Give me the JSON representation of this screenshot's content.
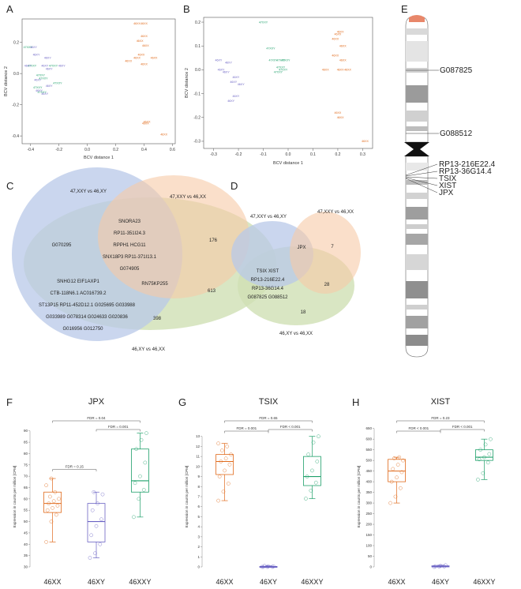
{
  "colors": {
    "xx": "#e06a1b",
    "xy": "#6b63c4",
    "xxy": "#1ea06a",
    "venn_blue": "#b8c8e8",
    "venn_orange": "#f6c9a6",
    "venn_green": "#cfe0b4"
  },
  "panel_labels": {
    "a": "A",
    "b": "B",
    "c": "C",
    "d": "D",
    "e": "E",
    "f": "F",
    "g": "G",
    "h": "H"
  },
  "mds_a": {
    "xlabel": "BCV distance 1",
    "ylabel": "BCV distance 2",
    "xticks": [
      "-0.4",
      "-0.2",
      "0.0",
      "0.2",
      "0.4",
      "0.6"
    ],
    "yticks": [
      "-0.4",
      "-0.2",
      "0.0",
      "0.2"
    ],
    "points": [
      {
        "label": "46XX",
        "group": "xx",
        "x": 0.35,
        "y": 0.32
      },
      {
        "label": "46XX",
        "group": "xx",
        "x": 0.4,
        "y": 0.32
      },
      {
        "label": "46XX",
        "group": "xx",
        "x": 0.4,
        "y": 0.24
      },
      {
        "label": "46XX",
        "group": "xx",
        "x": 0.37,
        "y": 0.21
      },
      {
        "label": "46XX",
        "group": "xx",
        "x": 0.41,
        "y": 0.18
      },
      {
        "label": "46XX",
        "group": "xx",
        "x": 0.38,
        "y": 0.12
      },
      {
        "label": "46XX",
        "group": "xx",
        "x": 0.35,
        "y": 0.1
      },
      {
        "label": "46XX",
        "group": "xx",
        "x": 0.47,
        "y": 0.1
      },
      {
        "label": "46XX",
        "group": "xx",
        "x": 0.29,
        "y": 0.08
      },
      {
        "label": "46XX",
        "group": "xx",
        "x": 0.4,
        "y": 0.06
      },
      {
        "label": "46XX",
        "group": "xx",
        "x": 0.42,
        "y": -0.31
      },
      {
        "label": "46XX",
        "group": "xx",
        "x": 0.41,
        "y": -0.32
      },
      {
        "label": "46XX",
        "group": "xx",
        "x": 0.54,
        "y": -0.39
      },
      {
        "label": "47XXY",
        "group": "xxy",
        "x": -0.42,
        "y": 0.17
      },
      {
        "label": "47XXY",
        "group": "xxy",
        "x": -0.39,
        "y": 0.05
      },
      {
        "label": "47XXY",
        "group": "xxy",
        "x": -0.24,
        "y": 0.05
      },
      {
        "label": "47XXY",
        "group": "xxy",
        "x": -0.33,
        "y": -0.01
      },
      {
        "label": "47XXY",
        "group": "xxy",
        "x": -0.31,
        "y": -0.03
      },
      {
        "label": "47XXY",
        "group": "xxy",
        "x": -0.21,
        "y": -0.06
      },
      {
        "label": "47XXY",
        "group": "xxy",
        "x": -0.35,
        "y": -0.09
      },
      {
        "label": "47XXY",
        "group": "xxy",
        "x": -0.32,
        "y": -0.12
      },
      {
        "label": "46XY",
        "group": "xy",
        "x": -0.38,
        "y": 0.17
      },
      {
        "label": "46XY",
        "group": "xy",
        "x": -0.36,
        "y": 0.12
      },
      {
        "label": "46XY",
        "group": "xy",
        "x": -0.28,
        "y": 0.1
      },
      {
        "label": "46XY",
        "group": "xy",
        "x": -0.42,
        "y": 0.05
      },
      {
        "label": "46XY",
        "group": "xy",
        "x": -0.3,
        "y": 0.05
      },
      {
        "label": "46XY",
        "group": "xy",
        "x": -0.18,
        "y": 0.05
      },
      {
        "label": "46XY",
        "group": "xy",
        "x": -0.27,
        "y": 0.03
      },
      {
        "label": "46XY",
        "group": "xy",
        "x": -0.35,
        "y": -0.04
      },
      {
        "label": "46XY",
        "group": "xy",
        "x": -0.27,
        "y": -0.08
      },
      {
        "label": "46XY",
        "group": "xy",
        "x": -0.34,
        "y": -0.11
      },
      {
        "label": "46XY",
        "group": "xy",
        "x": -0.3,
        "y": -0.13
      }
    ]
  },
  "mds_b": {
    "xlabel": "BCV distance 1",
    "ylabel": "BCV distance 2",
    "xticks": [
      "-0.3",
      "-0.2",
      "-0.1",
      "0.0",
      "0.1",
      "0.2",
      "0.3"
    ],
    "yticks": [
      "-0.3",
      "-0.2",
      "-0.1",
      "0.0",
      "0.1",
      "0.2"
    ],
    "points": [
      {
        "label": "46XX",
        "group": "xx",
        "x": 0.21,
        "y": 0.16
      },
      {
        "label": "46XX",
        "group": "xx",
        "x": 0.2,
        "y": 0.15
      },
      {
        "label": "46XX",
        "group": "xx",
        "x": 0.19,
        "y": 0.13
      },
      {
        "label": "46XX",
        "group": "xx",
        "x": 0.22,
        "y": 0.1
      },
      {
        "label": "46XX",
        "group": "xx",
        "x": 0.19,
        "y": 0.06
      },
      {
        "label": "46XX",
        "group": "xx",
        "x": 0.22,
        "y": 0.04
      },
      {
        "label": "46XX",
        "group": "xx",
        "x": 0.15,
        "y": 0.0
      },
      {
        "label": "46XX",
        "group": "xx",
        "x": 0.21,
        "y": 0.0
      },
      {
        "label": "46XX",
        "group": "xx",
        "x": 0.24,
        "y": 0.0
      },
      {
        "label": "46XX",
        "group": "xx",
        "x": 0.2,
        "y": -0.18
      },
      {
        "label": "46XX",
        "group": "xx",
        "x": 0.21,
        "y": -0.2
      },
      {
        "label": "46XX",
        "group": "xx",
        "x": 0.31,
        "y": -0.3
      },
      {
        "label": "47XXY",
        "group": "xxy",
        "x": -0.1,
        "y": 0.2
      },
      {
        "label": "47XXY",
        "group": "xxy",
        "x": -0.07,
        "y": 0.09
      },
      {
        "label": "47XXY",
        "group": "xxy",
        "x": -0.06,
        "y": 0.04
      },
      {
        "label": "47XXY",
        "group": "xxy",
        "x": -0.03,
        "y": 0.04
      },
      {
        "label": "47XXY",
        "group": "xxy",
        "x": -0.01,
        "y": 0.04
      },
      {
        "label": "47XXY",
        "group": "xxy",
        "x": -0.03,
        "y": 0.01
      },
      {
        "label": "47XXY",
        "group": "xxy",
        "x": -0.02,
        "y": 0.0
      },
      {
        "label": "47XXY",
        "group": "xxy",
        "x": -0.04,
        "y": -0.01
      },
      {
        "label": "46XY",
        "group": "xy",
        "x": -0.28,
        "y": 0.04
      },
      {
        "label": "46XY",
        "group": "xy",
        "x": -0.24,
        "y": 0.03
      },
      {
        "label": "46XY",
        "group": "xy",
        "x": -0.27,
        "y": 0.0
      },
      {
        "label": "46XY",
        "group": "xy",
        "x": -0.25,
        "y": -0.01
      },
      {
        "label": "46XY",
        "group": "xy",
        "x": -0.21,
        "y": -0.03
      },
      {
        "label": "46XY",
        "group": "xy",
        "x": -0.22,
        "y": -0.05
      },
      {
        "label": "46XY",
        "group": "xy",
        "x": -0.19,
        "y": -0.06
      },
      {
        "label": "46XY",
        "group": "xy",
        "x": -0.21,
        "y": -0.11
      },
      {
        "label": "46XY",
        "group": "xy",
        "x": -0.23,
        "y": -0.13
      }
    ]
  },
  "venn_c": {
    "set1": "47,XXY vs 46,XY",
    "set2": "47,XXY vs 46,XX",
    "set3": "46,XY vs 46,XX",
    "only1": "G070295",
    "only2": "176",
    "only3": "398",
    "c12": [
      "SNORA23",
      "RP11-351I24.3",
      "RPPH1 HCG11",
      "SNX18P3 RP11-371I13.1",
      "G074905"
    ],
    "c23": "613",
    "c123": [
      "RN75KP255"
    ],
    "c13": [
      "SNHG12 EIF1AXP1",
      "CTB-118N6.1 AC016739.2",
      "ST13P15 RP11-452D12.1 G025695 G033988",
      "G033989 G078314 G024633 G020836",
      "G016956 G012750"
    ]
  },
  "venn_d": {
    "set1": "47,XXY vs 46,XY",
    "set2": "47,XXY vs 46,XX",
    "set3": "46,XY vs 46,XX",
    "c12": "JPX",
    "only2": "7",
    "c123": [
      "TSIX XIST",
      "RP13-216E22.4",
      "RP13-36G14.4",
      "G087825 G088512"
    ],
    "c23": "28",
    "only3": "18"
  },
  "chromosome": {
    "labels": [
      "G087825",
      "G088512",
      "RP13-216E22.4",
      "RP13-36G14.4",
      "TSIX",
      "XIST",
      "JPX"
    ]
  },
  "boxplots": [
    {
      "title": "JPX",
      "ylabel": "Expression in counts per million [CPM]",
      "groups": [
        "46XX",
        "46XY",
        "46XXY"
      ],
      "ylim": [
        30,
        92
      ],
      "yticks": [
        30,
        35,
        40,
        45,
        50,
        55,
        60,
        65,
        70,
        75,
        80,
        85,
        90
      ],
      "stats": [
        {
          "q1": 54,
          "median": 58,
          "q3": 63,
          "min": 41,
          "max": 69,
          "points": [
            41,
            50,
            53,
            55,
            56,
            57,
            58,
            59,
            60,
            61,
            63,
            66,
            69
          ]
        },
        {
          "q1": 41,
          "median": 50,
          "q3": 58,
          "min": 34,
          "max": 63,
          "points": [
            34,
            36,
            40,
            44,
            48,
            51,
            55,
            58,
            62,
            63
          ]
        },
        {
          "q1": 63,
          "median": 68,
          "q3": 82,
          "min": 52,
          "max": 89,
          "points": [
            52,
            60,
            64,
            67,
            70,
            76,
            82,
            86,
            89
          ]
        }
      ],
      "brackets": [
        {
          "from": 0,
          "to": 1,
          "label": "FDR = 0.15"
        },
        {
          "from": 1,
          "to": 2,
          "label": "FDR = 0.001"
        },
        {
          "from": 0,
          "to": 2,
          "label": "FDR = 0.04"
        }
      ]
    },
    {
      "title": "TSIX",
      "ylabel": "Expression in counts per million [CPM]",
      "groups": [
        "46XX",
        "46XY",
        "46XXY"
      ],
      "ylim": [
        0,
        14
      ],
      "yticks": [
        0,
        1,
        2,
        3,
        4,
        5,
        6,
        7,
        8,
        9,
        10,
        11,
        12,
        13
      ],
      "stats": [
        {
          "q1": 9.2,
          "median": 10.5,
          "q3": 11.2,
          "min": 6.6,
          "max": 12.3,
          "points": [
            6.6,
            7.5,
            8.3,
            9.0,
            9.6,
            10.2,
            10.5,
            10.8,
            11.2,
            11.6,
            12.0,
            12.3
          ]
        },
        {
          "q1": 0.0,
          "median": 0.0,
          "q3": 0.05,
          "min": 0.0,
          "max": 0.1,
          "points": [
            0,
            0,
            0,
            0,
            0.05,
            0.05,
            0.1
          ]
        },
        {
          "q1": 8.1,
          "median": 9.0,
          "q3": 11.0,
          "min": 6.8,
          "max": 13.0,
          "points": [
            6.8,
            7.6,
            8.4,
            9.0,
            9.6,
            10.5,
            11.2,
            12.4,
            13.0
          ]
        }
      ],
      "brackets": [
        {
          "from": 0,
          "to": 1,
          "label": "FDR = 0.001"
        },
        {
          "from": 1,
          "to": 2,
          "label": "FDR < 0.001"
        },
        {
          "from": 0,
          "to": 2,
          "label": "FDR = 0.65"
        }
      ]
    },
    {
      "title": "XIST",
      "ylabel": "Expression in counts per million [CPM]",
      "groups": [
        "46XX",
        "46XY",
        "46XXY"
      ],
      "ylim": [
        0,
        660
      ],
      "yticks": [
        0,
        50,
        100,
        150,
        200,
        250,
        300,
        350,
        400,
        450,
        500,
        550,
        600,
        650
      ],
      "stats": [
        {
          "q1": 400,
          "median": 450,
          "q3": 505,
          "min": 300,
          "max": 515,
          "points": [
            300,
            330,
            370,
            400,
            420,
            445,
            460,
            480,
            500,
            510,
            515
          ]
        },
        {
          "q1": 0,
          "median": 2,
          "q3": 5,
          "min": 0,
          "max": 8,
          "points": [
            0,
            1,
            2,
            3,
            5,
            8
          ]
        },
        {
          "q1": 500,
          "median": 515,
          "q3": 550,
          "min": 410,
          "max": 600,
          "points": [
            410,
            440,
            490,
            505,
            515,
            530,
            550,
            575,
            600
          ]
        }
      ],
      "brackets": [
        {
          "from": 0,
          "to": 1,
          "label": "FDR < 0.001"
        },
        {
          "from": 1,
          "to": 2,
          "label": "FDR < 0.001"
        },
        {
          "from": 0,
          "to": 2,
          "label": "FDR = 0.23"
        }
      ]
    }
  ]
}
